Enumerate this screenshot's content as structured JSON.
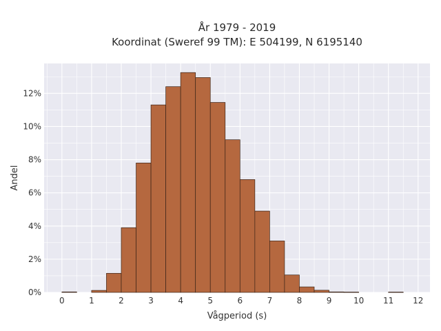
{
  "chart_data": {
    "type": "bar",
    "title_line1": "År 1979 - 2019",
    "title_line2": "Koordinat (Sweref 99 TM): E 504199, N 6195140",
    "xlabel": "Vågperiod (s)",
    "ylabel": "Andel",
    "xlim": [
      -0.6,
      12.4
    ],
    "ylim": [
      0,
      13.8
    ],
    "x_ticks": [
      0,
      1,
      2,
      3,
      4,
      5,
      6,
      7,
      8,
      9,
      10,
      11,
      12
    ],
    "x_tick_labels": [
      "0",
      "1",
      "2",
      "3",
      "4",
      "5",
      "6",
      "7",
      "8",
      "9",
      "10",
      "11",
      "12"
    ],
    "y_ticks": [
      0,
      2,
      4,
      6,
      8,
      10,
      12
    ],
    "y_tick_labels": [
      "0%",
      "2%",
      "4%",
      "6%",
      "8%",
      "10%",
      "12%"
    ],
    "bin_width": 0.5,
    "bins": [
      {
        "x0": 0.0,
        "value": 0.03
      },
      {
        "x0": 1.0,
        "value": 0.12
      },
      {
        "x0": 1.5,
        "value": 1.15
      },
      {
        "x0": 2.0,
        "value": 3.9
      },
      {
        "x0": 2.5,
        "value": 7.8
      },
      {
        "x0": 3.0,
        "value": 11.3
      },
      {
        "x0": 3.5,
        "value": 12.4
      },
      {
        "x0": 4.0,
        "value": 13.25
      },
      {
        "x0": 4.5,
        "value": 12.95
      },
      {
        "x0": 5.0,
        "value": 11.45
      },
      {
        "x0": 5.5,
        "value": 9.2
      },
      {
        "x0": 6.0,
        "value": 6.8
      },
      {
        "x0": 6.5,
        "value": 4.9
      },
      {
        "x0": 7.0,
        "value": 3.1
      },
      {
        "x0": 7.5,
        "value": 1.05
      },
      {
        "x0": 8.0,
        "value": 0.33
      },
      {
        "x0": 8.5,
        "value": 0.13
      },
      {
        "x0": 9.0,
        "value": 0.03
      },
      {
        "x0": 9.5,
        "value": 0.02
      },
      {
        "x0": 11.0,
        "value": 0.02
      }
    ],
    "grid": true,
    "colors": {
      "bar_fill": "#b5683f",
      "bar_edge": "#3a2418",
      "plot_bg": "#e9e9f1",
      "grid": "#ffffff"
    }
  }
}
